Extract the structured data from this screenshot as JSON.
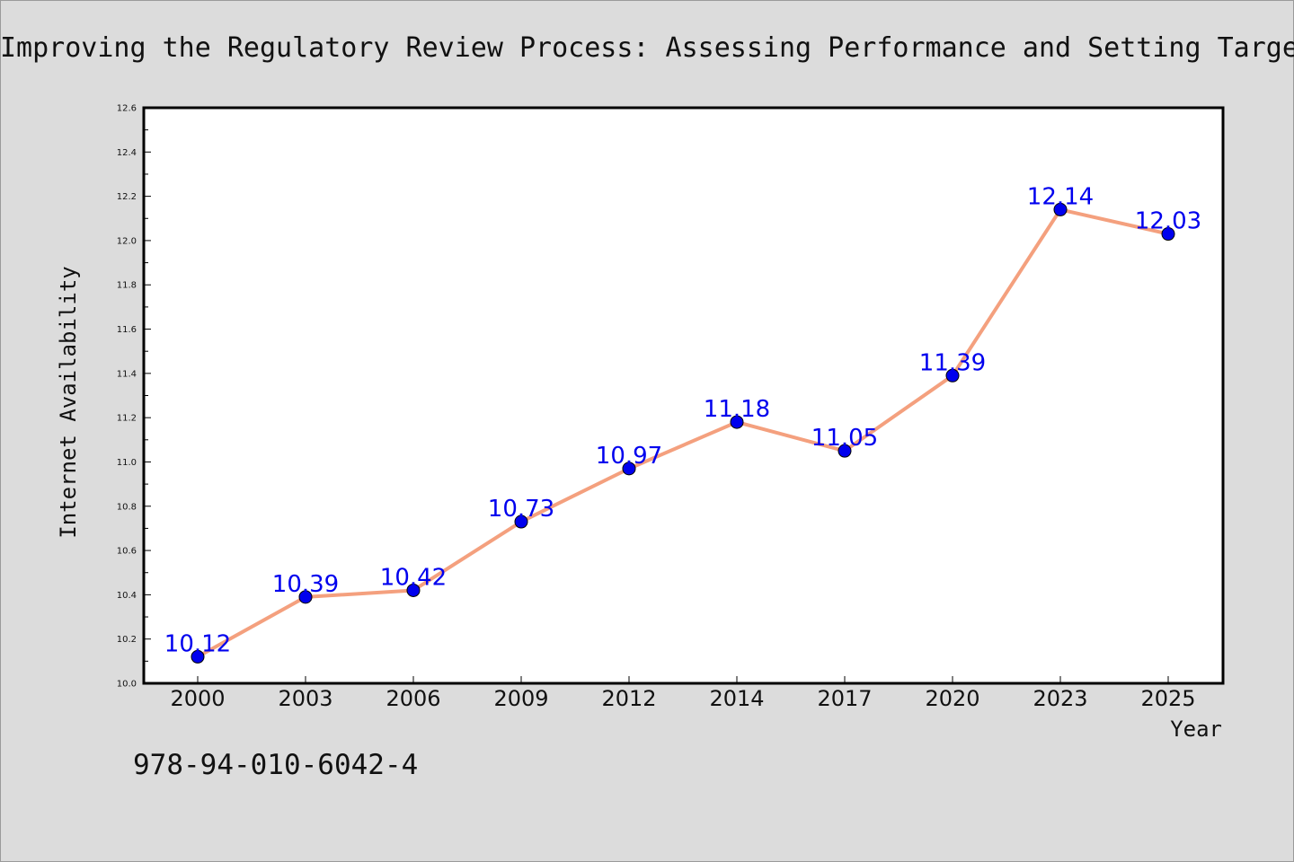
{
  "chart_data": {
    "type": "line",
    "title": "Improving the Regulatory Review Process: Assessing Performance and Setting Targets",
    "xlabel": "Year",
    "ylabel": "Internet Availability",
    "categories": [
      "2000",
      "2003",
      "2006",
      "2009",
      "2012",
      "2014",
      "2017",
      "2020",
      "2023",
      "2025"
    ],
    "series": [
      {
        "values": [
          10.12,
          10.39,
          10.42,
          10.73,
          10.97,
          11.18,
          11.05,
          11.39,
          12.14,
          12.03
        ]
      }
    ],
    "data_labels": [
      "10.12",
      "10.39",
      "10.42",
      "10.73",
      "10.97",
      "11.18",
      "11.05",
      "11.39",
      "12.14",
      "12.03"
    ],
    "ylim": [
      10.0,
      12.6
    ],
    "y_ticks": [
      "10.0",
      "10.2",
      "10.4",
      "10.6",
      "10.8",
      "11.0",
      "11.2",
      "11.4",
      "11.6",
      "11.8",
      "12.0",
      "12.2",
      "12.4",
      "12.6"
    ],
    "grid": false,
    "legend": "none",
    "colors": {
      "line": "#f4a07e",
      "marker": "#0000ee",
      "label": "#0000ee",
      "background": "#dcdcdc",
      "plot_background": "#ffffff"
    }
  },
  "footer_text": "978-94-010-6042-4"
}
